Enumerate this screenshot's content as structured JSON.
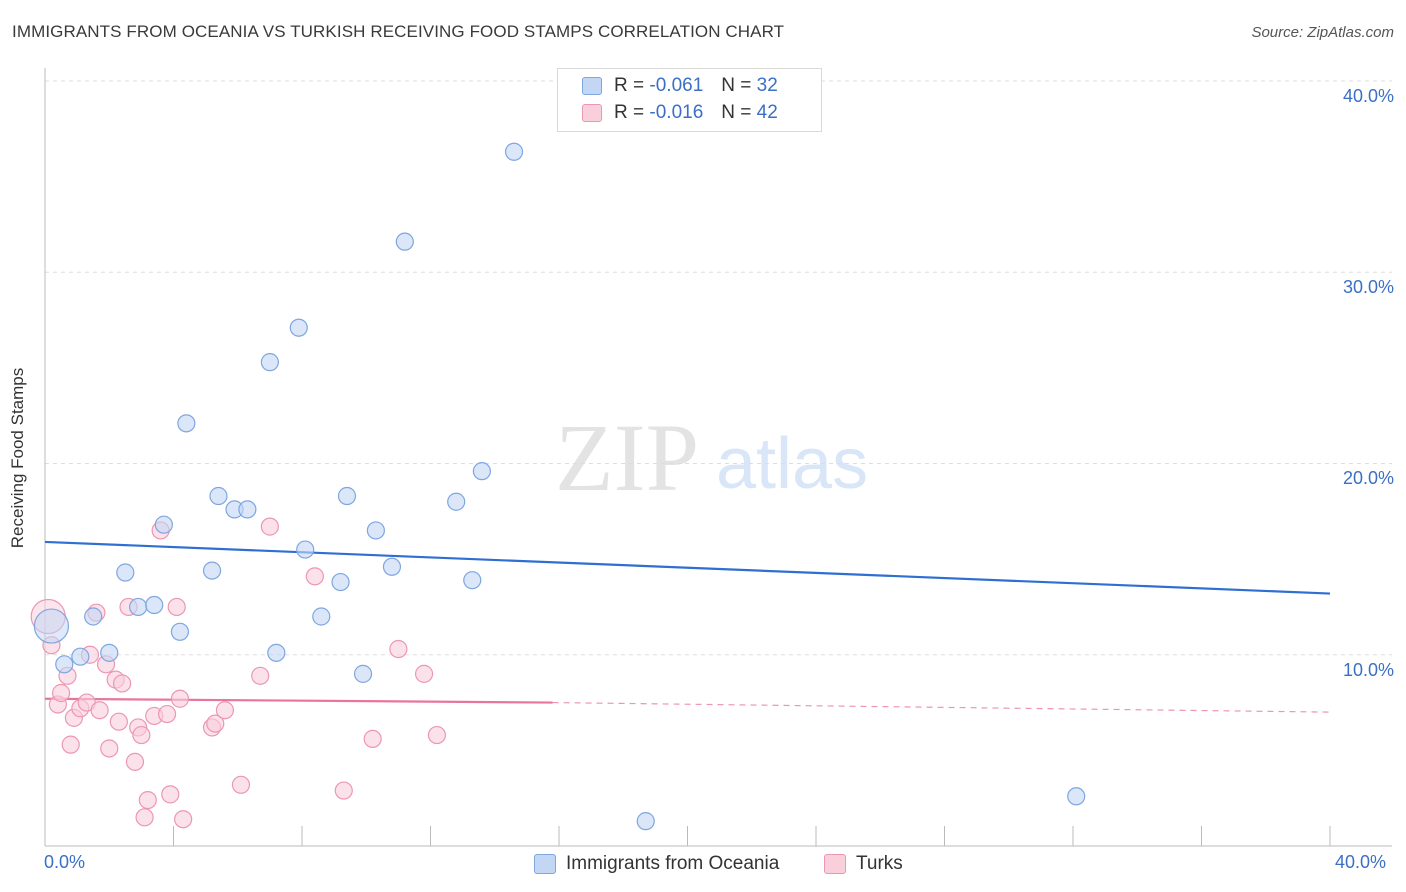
{
  "title": "IMMIGRANTS FROM OCEANIA VS TURKISH RECEIVING FOOD STAMPS CORRELATION CHART",
  "source": "Source: ZipAtlas.com",
  "watermark": {
    "zip": "ZIP",
    "atlas": "atlas"
  },
  "stats": [
    {
      "r_label": "R =",
      "r_value": "-0.061",
      "n_label": "N =",
      "n_value": "32",
      "color": "#7ea6e0"
    },
    {
      "r_label": "R =",
      "r_value": "-0.016",
      "n_label": "N =",
      "n_value": "42",
      "color": "#ec97b2"
    }
  ],
  "legend": [
    {
      "label": "Immigrants from Oceania",
      "color": "#c3d7f5"
    },
    {
      "label": "Turks",
      "color": "#f9cfdc"
    }
  ],
  "chart_data": {
    "type": "scatter",
    "title": "IMMIGRANTS FROM OCEANIA VS TURKISH RECEIVING FOOD STAMPS CORRELATION CHART",
    "xlabel": "",
    "ylabel": "Receiving Food Stamps",
    "xlim": [
      0,
      40
    ],
    "ylim": [
      0,
      40
    ],
    "x_tick_labels": [
      "0.0%",
      "40.0%"
    ],
    "y_ticks": [
      10,
      20,
      30,
      40
    ],
    "y_tick_labels": [
      "10.0%",
      "20.0%",
      "30.0%",
      "40.0%"
    ],
    "grid": true,
    "series": [
      {
        "name": "Immigrants from Oceania",
        "color": "#7ea6e0",
        "fill": "#c3d7f5",
        "trend": {
          "x": [
            0,
            40
          ],
          "y": [
            15.9,
            13.2
          ]
        },
        "points": [
          {
            "x": 0.2,
            "y": 11.5,
            "big": true
          },
          {
            "x": 0.6,
            "y": 9.5
          },
          {
            "x": 1.1,
            "y": 9.9
          },
          {
            "x": 1.5,
            "y": 12.0
          },
          {
            "x": 2.0,
            "y": 10.1
          },
          {
            "x": 2.5,
            "y": 14.3
          },
          {
            "x": 2.9,
            "y": 12.5
          },
          {
            "x": 3.4,
            "y": 12.6
          },
          {
            "x": 3.7,
            "y": 16.8
          },
          {
            "x": 4.2,
            "y": 11.2
          },
          {
            "x": 4.4,
            "y": 22.1
          },
          {
            "x": 5.2,
            "y": 14.4
          },
          {
            "x": 5.4,
            "y": 18.3
          },
          {
            "x": 5.9,
            "y": 17.6
          },
          {
            "x": 6.3,
            "y": 17.6
          },
          {
            "x": 7.0,
            "y": 25.3
          },
          {
            "x": 7.2,
            "y": 10.1
          },
          {
            "x": 7.9,
            "y": 27.1
          },
          {
            "x": 8.1,
            "y": 15.5
          },
          {
            "x": 8.6,
            "y": 12.0
          },
          {
            "x": 9.2,
            "y": 13.8
          },
          {
            "x": 9.4,
            "y": 18.3
          },
          {
            "x": 9.9,
            "y": 9.0
          },
          {
            "x": 10.3,
            "y": 16.5
          },
          {
            "x": 10.8,
            "y": 14.6
          },
          {
            "x": 11.2,
            "y": 31.6
          },
          {
            "x": 12.8,
            "y": 18.0
          },
          {
            "x": 13.3,
            "y": 13.9
          },
          {
            "x": 13.6,
            "y": 19.6
          },
          {
            "x": 14.6,
            "y": 36.3
          },
          {
            "x": 18.7,
            "y": 1.3
          },
          {
            "x": 32.1,
            "y": 2.6
          }
        ]
      },
      {
        "name": "Turks",
        "color": "#ec97b2",
        "fill": "#f9cfdc",
        "trend": {
          "x": [
            0,
            15.8
          ],
          "y": [
            7.7,
            7.5
          ]
        },
        "trend_dashed": {
          "x": [
            15.8,
            40
          ],
          "y": [
            7.5,
            7.0
          ]
        },
        "points": [
          {
            "x": 0.1,
            "y": 12.0,
            "big": true
          },
          {
            "x": 0.2,
            "y": 10.5
          },
          {
            "x": 0.4,
            "y": 7.4
          },
          {
            "x": 0.5,
            "y": 8.0
          },
          {
            "x": 0.7,
            "y": 8.9
          },
          {
            "x": 0.8,
            "y": 5.3
          },
          {
            "x": 0.9,
            "y": 6.7
          },
          {
            "x": 1.1,
            "y": 7.2
          },
          {
            "x": 1.3,
            "y": 7.5
          },
          {
            "x": 1.4,
            "y": 10.0
          },
          {
            "x": 1.6,
            "y": 12.2
          },
          {
            "x": 1.7,
            "y": 7.1
          },
          {
            "x": 1.9,
            "y": 9.5
          },
          {
            "x": 2.0,
            "y": 5.1
          },
          {
            "x": 2.2,
            "y": 8.7
          },
          {
            "x": 2.3,
            "y": 6.5
          },
          {
            "x": 2.4,
            "y": 8.5
          },
          {
            "x": 2.6,
            "y": 12.5
          },
          {
            "x": 2.8,
            "y": 4.4
          },
          {
            "x": 2.9,
            "y": 6.2
          },
          {
            "x": 3.0,
            "y": 5.8
          },
          {
            "x": 3.1,
            "y": 1.5
          },
          {
            "x": 3.2,
            "y": 2.4
          },
          {
            "x": 3.4,
            "y": 6.8
          },
          {
            "x": 3.6,
            "y": 16.5
          },
          {
            "x": 3.8,
            "y": 6.9
          },
          {
            "x": 3.9,
            "y": 2.7
          },
          {
            "x": 4.1,
            "y": 12.5
          },
          {
            "x": 4.2,
            "y": 7.7
          },
          {
            "x": 4.3,
            "y": 1.4
          },
          {
            "x": 5.2,
            "y": 6.2
          },
          {
            "x": 5.3,
            "y": 6.4
          },
          {
            "x": 5.6,
            "y": 7.1
          },
          {
            "x": 6.1,
            "y": 3.2
          },
          {
            "x": 6.7,
            "y": 8.9
          },
          {
            "x": 7.0,
            "y": 16.7
          },
          {
            "x": 8.4,
            "y": 14.1
          },
          {
            "x": 9.3,
            "y": 2.9
          },
          {
            "x": 10.2,
            "y": 5.6
          },
          {
            "x": 11.0,
            "y": 10.3
          },
          {
            "x": 11.8,
            "y": 9.0
          },
          {
            "x": 12.2,
            "y": 5.8
          }
        ]
      }
    ]
  }
}
